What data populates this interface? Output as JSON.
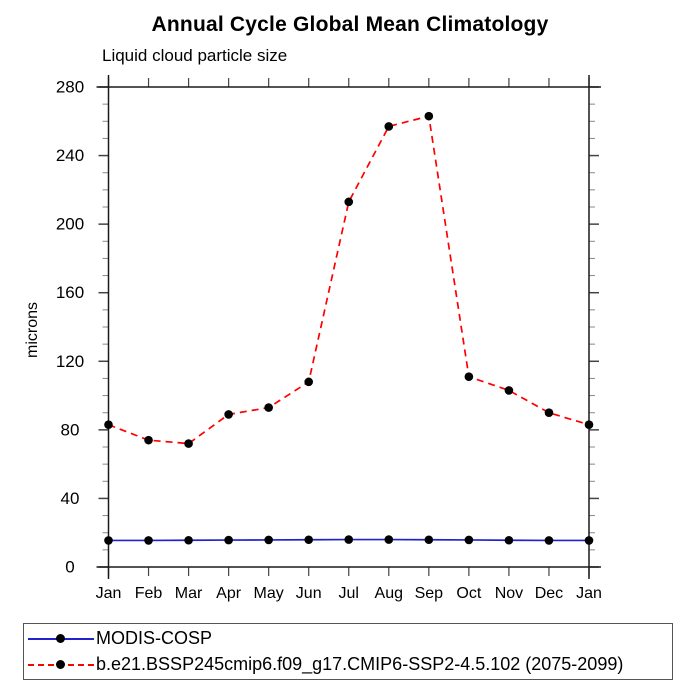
{
  "chart_data": {
    "type": "line",
    "title": "Annual Cycle Global Mean Climatology",
    "subtitle": "Liquid cloud particle size",
    "ylabel": "microns",
    "categories": [
      "Jan",
      "Feb",
      "Mar",
      "Apr",
      "May",
      "Jun",
      "Jul",
      "Aug",
      "Sep",
      "Oct",
      "Nov",
      "Dec",
      "Jan"
    ],
    "ylim": [
      0,
      280
    ],
    "yticks": [
      0,
      40,
      80,
      120,
      160,
      200,
      240,
      280
    ],
    "yminor_step": 10,
    "grid": "off",
    "legend_position": "bottom-left-box",
    "axis_color": "#1a1a1a",
    "tick_color": "#444444",
    "minor_tick_color": "#888888",
    "text_color": "#000000",
    "series": [
      {
        "name": "MODIS-COSP",
        "color": "#2222cc",
        "line_style": "solid",
        "marker": "circle",
        "marker_color": "#000000",
        "values": [
          15.5,
          15.5,
          15.6,
          15.7,
          15.8,
          15.9,
          16.0,
          16.0,
          15.9,
          15.8,
          15.6,
          15.5,
          15.5
        ]
      },
      {
        "name": "b.e21.BSSP245cmip6.f09_g17.CMIP6-SSP2-4.5.102 (2075-2099)",
        "color": "#ff0000",
        "line_style": "dashed",
        "marker": "circle",
        "marker_color": "#000000",
        "values": [
          83,
          74,
          72,
          89,
          93,
          108,
          213,
          257,
          263,
          111,
          103,
          90,
          83
        ]
      }
    ]
  }
}
